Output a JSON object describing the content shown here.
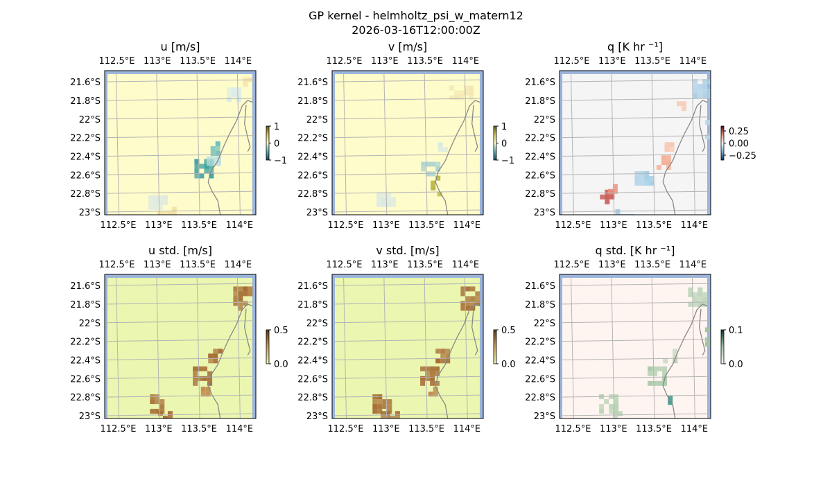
{
  "figure": {
    "suptitle": "GP kernel - helmholtz_psi_w_matern12",
    "subtitle": "2026-03-16T12:00:00Z"
  },
  "colors": {
    "land": "#ffffff",
    "ocean_edge": "#9bb5dd",
    "coast": "#888888",
    "grid": "#b4b4b4"
  },
  "chart_data": [
    {
      "type": "heatmap",
      "title": "u [m/s]",
      "variable": "u",
      "x_ticks": [
        "112.5°E",
        "113°E",
        "113.5°E",
        "114°E"
      ],
      "y_ticks": [
        "21.6°S",
        "21.8°S",
        "22°S",
        "22.2°S",
        "22.4°S",
        "22.6°S",
        "22.8°S",
        "23°S"
      ],
      "colorbar": {
        "ticks": [
          "1",
          "0",
          "−1"
        ],
        "range": [
          -1,
          1
        ]
      },
      "base_color": "#fefccb",
      "patches": [
        {
          "lon": 113.57,
          "lat": -22.52,
          "w": 0.22,
          "h": 0.18,
          "value": -0.6,
          "color": "#3aa0a0"
        },
        {
          "lon": 113.72,
          "lat": -22.3,
          "w": 0.12,
          "h": 0.12,
          "value": -0.4,
          "color": "#6fbcbc"
        },
        {
          "lon": 113.68,
          "lat": -22.45,
          "w": 0.14,
          "h": 0.1,
          "value": -0.2,
          "color": "#b7dede"
        },
        {
          "lon": 113.95,
          "lat": -21.72,
          "w": 0.18,
          "h": 0.12,
          "value": -0.15,
          "color": "#d9ebea"
        },
        {
          "lon": 114.12,
          "lat": -21.6,
          "w": 0.12,
          "h": 0.1,
          "value": 0.2,
          "color": "#f3e2a6"
        },
        {
          "lon": 113.0,
          "lat": -22.88,
          "w": 0.22,
          "h": 0.12,
          "value": -0.1,
          "color": "#dde9e3"
        },
        {
          "lon": 113.1,
          "lat": -22.98,
          "w": 0.2,
          "h": 0.07,
          "value": 0.3,
          "color": "#eeda9a"
        }
      ]
    },
    {
      "type": "heatmap",
      "title": "v [m/s]",
      "variable": "v",
      "x_ticks": [
        "112.5°E",
        "113°E",
        "113.5°E",
        "114°E"
      ],
      "y_ticks": [
        "21.6°S",
        "21.8°S",
        "22°S",
        "22.2°S",
        "22.4°S",
        "22.6°S",
        "22.8°S",
        "23°S"
      ],
      "colorbar": {
        "ticks": [
          "1",
          "0",
          "−1"
        ],
        "range": [
          -1,
          1
        ]
      },
      "base_color": "#fefccb",
      "patches": [
        {
          "lon": 113.63,
          "lat": -22.68,
          "w": 0.12,
          "h": 0.14,
          "value": 0.8,
          "color": "#a9a623"
        },
        {
          "lon": 113.7,
          "lat": -22.82,
          "w": 0.1,
          "h": 0.08,
          "value": 0.6,
          "color": "#c3bb45"
        },
        {
          "lon": 113.55,
          "lat": -22.52,
          "w": 0.2,
          "h": 0.12,
          "value": -0.3,
          "color": "#a9d2d2"
        },
        {
          "lon": 113.72,
          "lat": -22.3,
          "w": 0.12,
          "h": 0.1,
          "value": -0.15,
          "color": "#d5e8e4"
        },
        {
          "lon": 113.95,
          "lat": -21.7,
          "w": 0.3,
          "h": 0.12,
          "value": 0.15,
          "color": "#f3e7b2"
        },
        {
          "lon": 113.0,
          "lat": -22.85,
          "w": 0.2,
          "h": 0.12,
          "value": -0.1,
          "color": "#dce9e2"
        }
      ]
    },
    {
      "type": "heatmap",
      "title": "q [K hr ⁻¹]",
      "variable": "q",
      "x_ticks": [
        "112.5°E",
        "113°E",
        "113.5°E",
        "114°E"
      ],
      "y_ticks": [
        "21.6°S",
        "21.8°S",
        "22°S",
        "22.2°S",
        "22.4°S",
        "22.6°S",
        "22.8°S",
        "23°S"
      ],
      "colorbar": {
        "ticks": [
          "0.25",
          "0.00",
          "−0.25"
        ],
        "range": [
          -0.35,
          0.35
        ]
      },
      "base_color": "#f5f5f5",
      "patches": [
        {
          "lon": 112.93,
          "lat": -22.82,
          "w": 0.16,
          "h": 0.12,
          "value": 0.3,
          "color": "#c0413a"
        },
        {
          "lon": 113.0,
          "lat": -22.75,
          "w": 0.1,
          "h": 0.1,
          "value": 0.15,
          "color": "#e98f7d"
        },
        {
          "lon": 113.62,
          "lat": -22.45,
          "w": 0.14,
          "h": 0.12,
          "value": 0.1,
          "color": "#f4b29a"
        },
        {
          "lon": 113.7,
          "lat": -22.3,
          "w": 0.1,
          "h": 0.1,
          "value": 0.08,
          "color": "#f8c7b2"
        },
        {
          "lon": 113.38,
          "lat": -22.62,
          "w": 0.2,
          "h": 0.12,
          "value": -0.12,
          "color": "#a6cfe6"
        },
        {
          "lon": 113.15,
          "lat": -23.0,
          "w": 0.22,
          "h": 0.06,
          "value": -0.15,
          "color": "#9dc8e2"
        },
        {
          "lon": 114.1,
          "lat": -21.65,
          "w": 0.2,
          "h": 0.16,
          "value": -0.15,
          "color": "#a9cfe5"
        },
        {
          "lon": 114.18,
          "lat": -22.1,
          "w": 0.06,
          "h": 0.18,
          "value": -0.12,
          "color": "#b9d8ea"
        },
        {
          "lon": 113.85,
          "lat": -21.85,
          "w": 0.1,
          "h": 0.08,
          "value": 0.08,
          "color": "#f7cdb9"
        }
      ]
    },
    {
      "type": "heatmap",
      "title": "u std. [m/s]",
      "variable": "u_std",
      "x_ticks": [
        "112.5°E",
        "113°E",
        "113.5°E",
        "114°E"
      ],
      "y_ticks": [
        "21.6°S",
        "21.8°S",
        "22°S",
        "22.2°S",
        "22.4°S",
        "22.6°S",
        "22.8°S",
        "23°S"
      ],
      "colorbar": {
        "ticks": [
          "0.5",
          "0.0"
        ],
        "range": [
          0,
          0.5
        ]
      },
      "base_color": "#ebf6b0",
      "patches": [
        {
          "lon": 113.55,
          "lat": -22.55,
          "w": 0.22,
          "h": 0.16,
          "value": 0.45,
          "color": "#a66d35"
        },
        {
          "lon": 113.7,
          "lat": -22.35,
          "w": 0.14,
          "h": 0.14,
          "value": 0.45,
          "color": "#a66d35"
        },
        {
          "lon": 114.05,
          "lat": -21.72,
          "w": 0.22,
          "h": 0.22,
          "value": 0.45,
          "color": "#a66d35"
        },
        {
          "lon": 112.95,
          "lat": -22.85,
          "w": 0.2,
          "h": 0.16,
          "value": 0.45,
          "color": "#a66d35"
        },
        {
          "lon": 113.05,
          "lat": -22.98,
          "w": 0.2,
          "h": 0.06,
          "value": 0.45,
          "color": "#a66d35"
        },
        {
          "lon": 113.6,
          "lat": -22.72,
          "w": 0.12,
          "h": 0.06,
          "value": 0.35,
          "color": "#c08d4e"
        }
      ]
    },
    {
      "type": "heatmap",
      "title": "v std. [m/s]",
      "variable": "v_std",
      "x_ticks": [
        "112.5°E",
        "113°E",
        "113.5°E",
        "114°E"
      ],
      "y_ticks": [
        "21.6°S",
        "21.8°S",
        "22°S",
        "22.2°S",
        "22.4°S",
        "22.6°S",
        "22.8°S",
        "23°S"
      ],
      "colorbar": {
        "ticks": [
          "0.5",
          "0.0"
        ],
        "range": [
          0,
          0.5
        ]
      },
      "base_color": "#ebf6b0",
      "patches": [
        {
          "lon": 113.55,
          "lat": -22.55,
          "w": 0.22,
          "h": 0.16,
          "value": 0.45,
          "color": "#a66d35"
        },
        {
          "lon": 113.7,
          "lat": -22.35,
          "w": 0.14,
          "h": 0.14,
          "value": 0.45,
          "color": "#a66d35"
        },
        {
          "lon": 114.05,
          "lat": -21.72,
          "w": 0.22,
          "h": 0.22,
          "value": 0.45,
          "color": "#a66d35"
        },
        {
          "lon": 112.95,
          "lat": -22.85,
          "w": 0.2,
          "h": 0.16,
          "value": 0.45,
          "color": "#a66d35"
        },
        {
          "lon": 113.05,
          "lat": -22.98,
          "w": 0.2,
          "h": 0.06,
          "value": 0.45,
          "color": "#a66d35"
        },
        {
          "lon": 113.6,
          "lat": -22.72,
          "w": 0.12,
          "h": 0.06,
          "value": 0.35,
          "color": "#c08d4e"
        }
      ]
    },
    {
      "type": "heatmap",
      "title": "q std. [K hr ⁻¹]",
      "variable": "q_std",
      "x_ticks": [
        "112.5°E",
        "113°E",
        "113.5°E",
        "114°E"
      ],
      "y_ticks": [
        "21.6°S",
        "21.8°S",
        "22°S",
        "22.2°S",
        "22.4°S",
        "22.6°S",
        "22.8°S",
        "23°S"
      ],
      "colorbar": {
        "ticks": [
          "0.1",
          "0.0"
        ],
        "range": [
          0,
          0.1
        ]
      },
      "base_color": "#fff5f0",
      "patches": [
        {
          "lon": 113.55,
          "lat": -22.55,
          "w": 0.22,
          "h": 0.16,
          "value": 0.05,
          "color": "#a9c9a9"
        },
        {
          "lon": 113.7,
          "lat": -22.35,
          "w": 0.14,
          "h": 0.14,
          "value": 0.04,
          "color": "#bcd4b9"
        },
        {
          "lon": 114.05,
          "lat": -21.72,
          "w": 0.22,
          "h": 0.2,
          "value": 0.04,
          "color": "#b8d3b6"
        },
        {
          "lon": 112.95,
          "lat": -22.85,
          "w": 0.22,
          "h": 0.16,
          "value": 0.04,
          "color": "#b8d3b6"
        },
        {
          "lon": 113.72,
          "lat": -22.82,
          "w": 0.06,
          "h": 0.08,
          "value": 0.09,
          "color": "#2a8f7f"
        },
        {
          "lon": 113.05,
          "lat": -22.98,
          "w": 0.2,
          "h": 0.06,
          "value": 0.04,
          "color": "#b8d3b6"
        },
        {
          "lon": 114.18,
          "lat": -22.15,
          "w": 0.06,
          "h": 0.2,
          "value": 0.05,
          "color": "#9fc39f"
        }
      ]
    }
  ]
}
